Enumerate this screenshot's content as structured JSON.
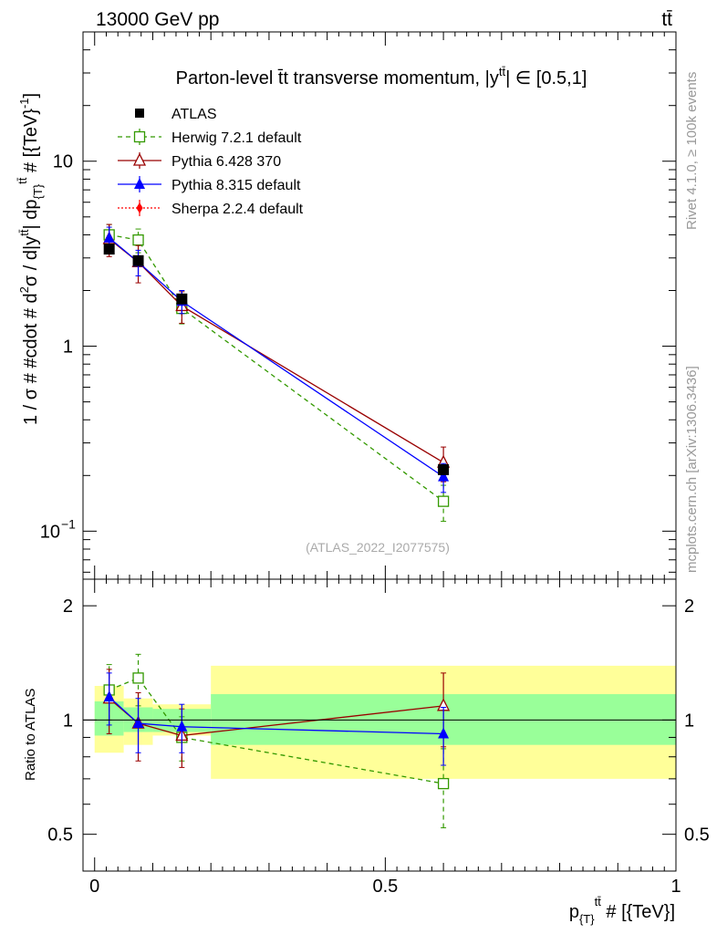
{
  "header": {
    "left": "13000 GeV pp",
    "right": "tt̄",
    "right_side_1": "Rivet 4.1.0, ≥ 100k events",
    "right_side_2": "mcplots.cern.ch [arXiv:1306.3436]",
    "watermark": "(ATLAS_2022_I2077575)"
  },
  "chart_data": {
    "type": "line",
    "title": "Parton-level t̄t transverse momentum, |y^{tt̄}| ∈ [0.5,1]",
    "title_main": "Parton-level t̄t transverse momentum, |y",
    "title_sup": "tt̄",
    "title_tail": "| ∈ [0.5,1]",
    "ylabel": "1 / σ # #cdot # d²σ / d|y^{tt̄}| dp_{T}^{tt̄} # [{TeV}⁻¹]",
    "ylabel_parts": {
      "a": "1 / σ # #cdot # d",
      "sup2": "2",
      "b": "σ / d|y",
      "sup_tt": "tt̄",
      "c": "| dp",
      "sub_T": "{T}",
      "sup_tt2": "tt̄",
      "d": " # [{TeV}",
      "sup_m1": "-1",
      "e": "]"
    },
    "xlabel": "p_{T}^{tt̄} # [{TeV}]",
    "xlabel_parts": {
      "a": "p",
      "sub": "{T}",
      "sup": "tt̄",
      "b": " # [{TeV}]"
    },
    "ratio_ylabel": "Ratio to ATLAS",
    "xlim": [
      -0.02,
      1.0
    ],
    "ylim_main": [
      0.055,
      50
    ],
    "yscale_main": "log",
    "ylim_ratio": [
      0.4,
      2.35
    ],
    "yscale_ratio": "log",
    "x_ticks": [
      {
        "v": 0,
        "label": "0"
      },
      {
        "v": 0.5,
        "label": "0.5"
      },
      {
        "v": 1,
        "label": "1"
      }
    ],
    "y_ticks_main": [
      {
        "v": 0.1,
        "label": "10",
        "sup": "−1"
      },
      {
        "v": 1,
        "label": "1",
        "sup": ""
      },
      {
        "v": 10,
        "label": "10",
        "sup": ""
      }
    ],
    "y_ticks_ratio": [
      {
        "v": 0.5,
        "label": "0.5"
      },
      {
        "v": 1,
        "label": "1"
      },
      {
        "v": 2,
        "label": "2"
      }
    ],
    "bins": [
      {
        "lo": 0.0,
        "hi": 0.05,
        "x": 0.025,
        "inner": [
          0.91,
          1.12
        ],
        "outer": [
          0.82,
          1.23
        ]
      },
      {
        "lo": 0.05,
        "hi": 0.1,
        "x": 0.075,
        "inner": [
          0.93,
          1.08
        ],
        "outer": [
          0.86,
          1.14
        ]
      },
      {
        "lo": 0.1,
        "hi": 0.2,
        "x": 0.15,
        "inner": [
          0.93,
          1.07
        ],
        "outer": [
          0.91,
          1.1
        ]
      },
      {
        "lo": 0.2,
        "hi": 1.0,
        "x": 0.6,
        "inner": [
          0.86,
          1.17
        ],
        "outer": [
          0.7,
          1.39
        ]
      }
    ],
    "legend_position": "top-left",
    "series": [
      {
        "name": "ATLAS",
        "color": "#000000",
        "marker": "square-filled",
        "line": "none",
        "x": [
          0.025,
          0.075,
          0.15,
          0.6
        ],
        "y": [
          3.35,
          2.9,
          1.8,
          0.215
        ],
        "err_lo": [
          0.15,
          0.12,
          0.08,
          0.01
        ],
        "err_hi": [
          0.15,
          0.12,
          0.08,
          0.01
        ],
        "ratio": [
          1.0,
          1.0,
          1.0,
          1.0
        ]
      },
      {
        "name": "Herwig 7.2.1 default",
        "color": "#339900",
        "marker": "square-open",
        "line": "dashed",
        "x": [
          0.025,
          0.075,
          0.15,
          0.6
        ],
        "y": [
          4.0,
          3.75,
          1.6,
          0.145
        ],
        "err_lo": [
          0.55,
          0.55,
          0.28,
          0.032
        ],
        "err_hi": [
          0.55,
          0.55,
          0.28,
          0.032
        ],
        "ratio": [
          1.2,
          1.29,
          0.9,
          0.68
        ],
        "ratio_err_lo": [
          0.2,
          0.2,
          0.12,
          0.16
        ],
        "ratio_err_hi": [
          0.2,
          0.2,
          0.12,
          0.16
        ]
      },
      {
        "name": "Pythia 6.428 370",
        "color": "#990000",
        "marker": "triangle-open",
        "line": "solid",
        "x": [
          0.025,
          0.075,
          0.15,
          0.6
        ],
        "y": [
          3.8,
          2.85,
          1.65,
          0.235
        ],
        "err_lo": [
          0.75,
          0.65,
          0.32,
          0.05
        ],
        "err_hi": [
          0.75,
          0.65,
          0.32,
          0.05
        ],
        "ratio": [
          1.14,
          0.98,
          0.91,
          1.09
        ],
        "ratio_err_lo": [
          0.22,
          0.2,
          0.16,
          0.24
        ],
        "ratio_err_hi": [
          0.22,
          0.2,
          0.16,
          0.24
        ]
      },
      {
        "name": "Pythia 8.315 default",
        "color": "#0000ff",
        "marker": "triangle-filled",
        "line": "solid",
        "x": [
          0.025,
          0.075,
          0.15,
          0.6
        ],
        "y": [
          3.85,
          2.85,
          1.75,
          0.197
        ],
        "err_lo": [
          0.55,
          0.45,
          0.25,
          0.035
        ],
        "err_hi": [
          0.55,
          0.45,
          0.25,
          0.035
        ],
        "ratio": [
          1.15,
          0.98,
          0.96,
          0.92
        ],
        "ratio_err_lo": [
          0.18,
          0.16,
          0.14,
          0.16
        ],
        "ratio_err_hi": [
          0.18,
          0.16,
          0.14,
          0.16
        ]
      },
      {
        "name": "Sherpa 2.2.4 default",
        "color": "#ff0000",
        "marker": "diamond-filled",
        "line": "dotted",
        "x": [],
        "y": [],
        "ratio": []
      }
    ]
  }
}
